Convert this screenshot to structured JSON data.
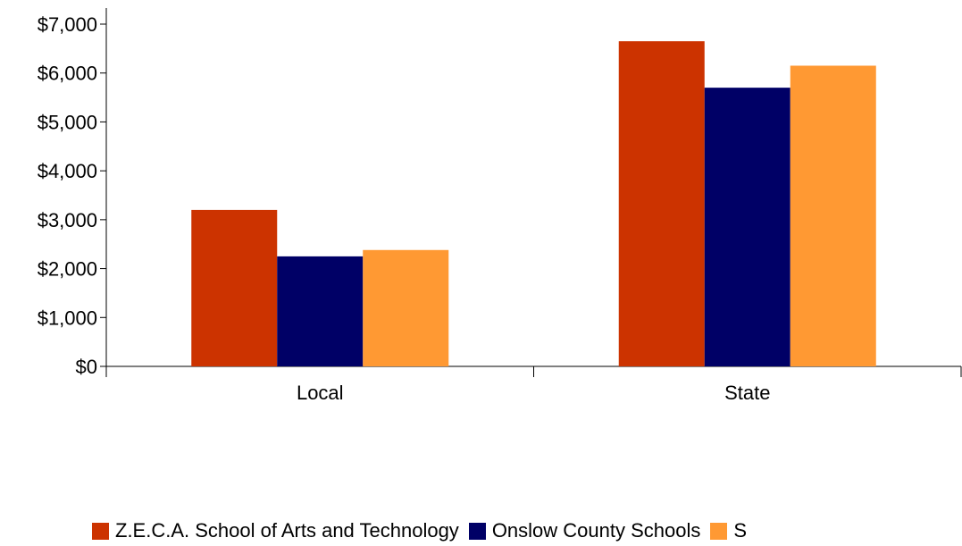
{
  "chart_data": {
    "type": "bar",
    "categories": [
      "Local",
      "State"
    ],
    "series": [
      {
        "name": "Z.E.C.A. School of Arts and Technology",
        "color": "#CC3300",
        "values": [
          3200,
          6650
        ]
      },
      {
        "name": "Onslow County Schools",
        "color": "#000066",
        "values": [
          2250,
          5700
        ]
      },
      {
        "name": "S",
        "color": "#FF9933",
        "values": [
          2380,
          6150
        ]
      }
    ],
    "y_ticks": [
      "$0",
      "$1,000",
      "$2,000",
      "$3,000",
      "$4,000",
      "$5,000",
      "$6,000",
      "$7,000"
    ],
    "ylim": [
      0,
      7000
    ],
    "grid": false,
    "legend_position": "bottom"
  }
}
